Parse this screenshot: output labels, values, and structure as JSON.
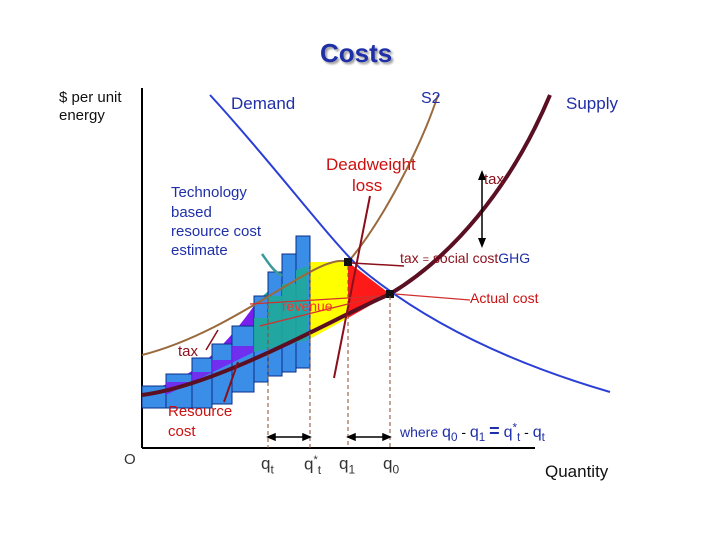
{
  "title": "Costs",
  "labels": {
    "y_axis_line1": "$ per unit",
    "y_axis_line2": "energy",
    "demand": "Demand",
    "s2": "S2",
    "supply": "Supply",
    "deadweight_line1": "Deadweight",
    "deadweight_line2": "loss",
    "tax_top": "tax",
    "tech_line1": "Technology",
    "tech_line2": "based",
    "tech_line3": "resource cost",
    "tech_line4": "estimate",
    "tax_equals": "tax",
    "equals_sign": "=",
    "social_cost": "social cost",
    "ghg": "GHG",
    "actual_cost": "Actual cost",
    "revenue": "revenue",
    "tax_left": "tax",
    "resource_line1": "Resource",
    "resource_line2": "cost",
    "where_text": "where",
    "origin": "O",
    "x_axis": "Quantity"
  },
  "quantities": {
    "qt": "q",
    "qt_sub": "t",
    "qtstar": "q",
    "qtstar_sub": "t",
    "qtstar_sup": "*",
    "q1": "q",
    "q1_sub": "1",
    "q0": "q",
    "q0_sub": "0"
  },
  "equation": {
    "a": "q",
    "a_sub": "0",
    "minus1": "-",
    "b": "q",
    "b_sub": "1",
    "eq": "=",
    "c": "q",
    "c_sup": "*",
    "c_sub": "t",
    "minus2": "-",
    "d": "q",
    "d_sub": "t"
  },
  "colors": {
    "demand_curve": "#2a3fd6",
    "s2_curve": "#9a6a3c",
    "supply_curve": "#5a0f22",
    "step_blue": "#3a8ee8",
    "purple": "#7a1ef0",
    "teal": "#1fa89a",
    "yellow": "#ffff00",
    "red": "#ff1a1a",
    "label_red": "#cc1010",
    "label_blue": "#1f2fa8",
    "accent_teal": "#3a9a9a"
  }
}
